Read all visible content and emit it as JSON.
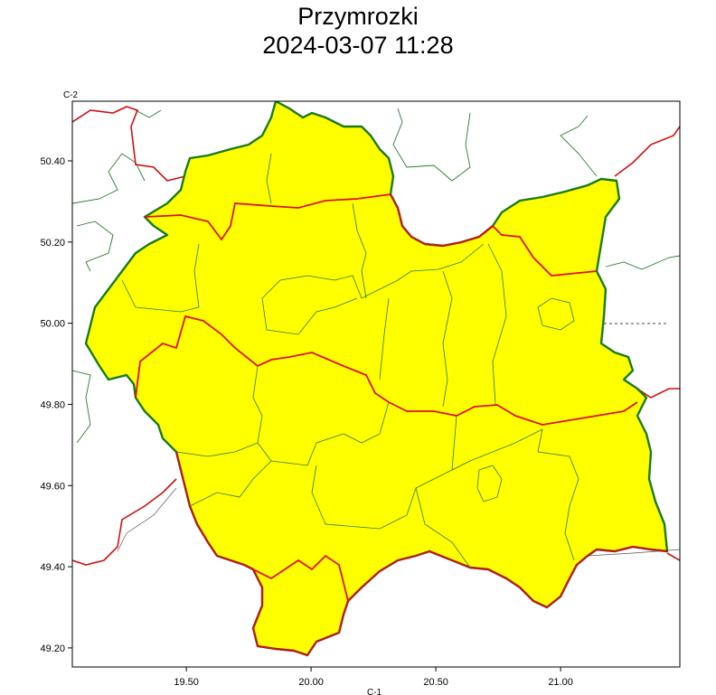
{
  "map": {
    "title": "Przymrozki",
    "subtitle": "2024-03-07 11:28",
    "corner_top": "C-2",
    "corner_bottom": "C-1",
    "xlim": [
      19.043,
      21.478
    ],
    "ylim": [
      49.153,
      50.547
    ],
    "xticks": [
      {
        "value": 19.5,
        "label": "19.50"
      },
      {
        "value": 20.0,
        "label": "20.00"
      },
      {
        "value": 20.5,
        "label": "20.50"
      },
      {
        "value": 21.0,
        "label": "21.00"
      }
    ],
    "yticks": [
      {
        "value": 50.4,
        "label": "50.40"
      },
      {
        "value": 50.2,
        "label": "50.20"
      },
      {
        "value": 50.0,
        "label": "50.00"
      },
      {
        "value": 49.8,
        "label": "49.80"
      },
      {
        "value": 49.6,
        "label": "49.60"
      },
      {
        "value": 49.4,
        "label": "49.40"
      },
      {
        "value": 49.2,
        "label": "49.20"
      }
    ]
  }
}
